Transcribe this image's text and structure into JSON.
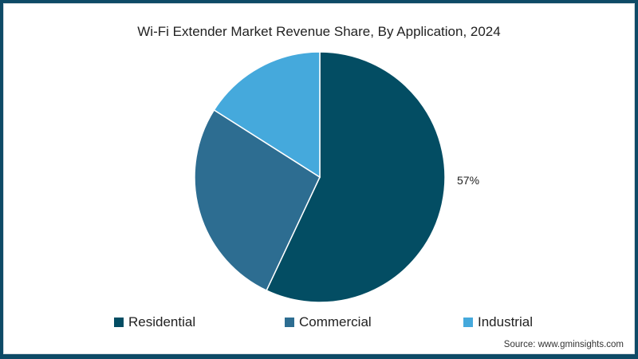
{
  "chart_data": {
    "type": "pie",
    "title": "Wi-Fi Extender Market Revenue Share, By Application, 2024",
    "categories": [
      "Residential",
      "Commercial",
      "Industrial"
    ],
    "values": [
      57,
      27,
      16
    ],
    "colors": [
      "#034d63",
      "#2d6d91",
      "#45a9dc"
    ],
    "data_labels": [
      "57%",
      "",
      ""
    ],
    "legend_position": "bottom",
    "start_angle_deg": 0,
    "direction": "clockwise"
  },
  "title": "Wi-Fi Extender Market Revenue Share, By Application, 2024",
  "label_57": "57%",
  "legend": [
    {
      "label": "Residential",
      "color": "#034d63"
    },
    {
      "label": "Commercial",
      "color": "#2d6d91"
    },
    {
      "label": "Industrial",
      "color": "#45a9dc"
    }
  ],
  "source": "Source: www.gminsights.com"
}
